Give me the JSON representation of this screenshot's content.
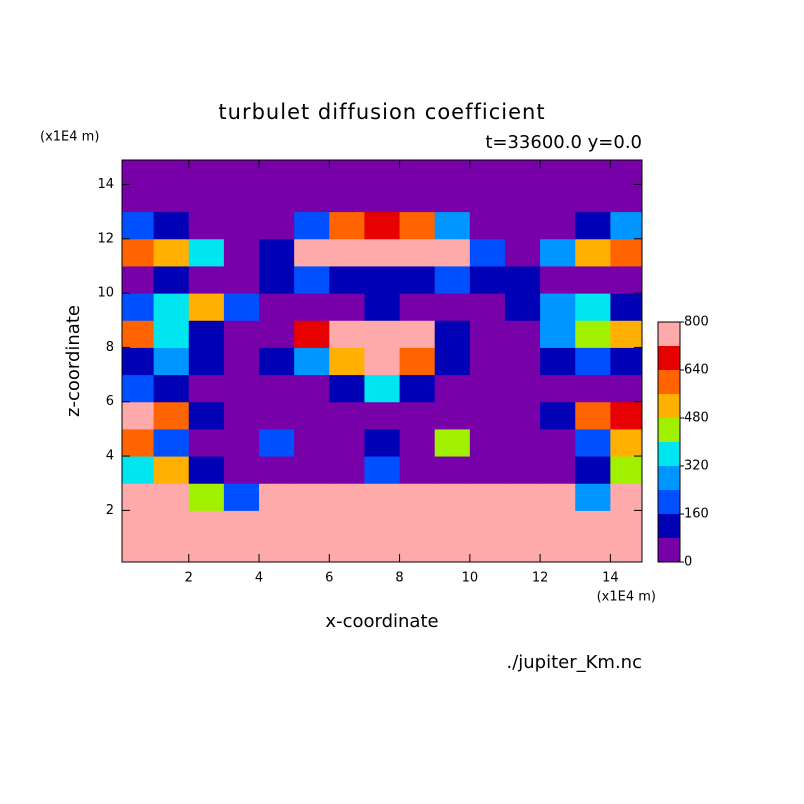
{
  "chart_data": {
    "type": "heatmap",
    "title": "turbulet diffusion coefficient",
    "subtitle": "t=33600.0 y=0.0",
    "x_label": "x-coordinate",
    "y_label": "z-coordinate",
    "x_unit": "(x1E4 m)",
    "y_unit": "(x1E4 m)",
    "source": "./jupiter_Km.nc",
    "xlim": [
      0.1,
      14.9
    ],
    "ylim": [
      0.1,
      14.9
    ],
    "xticks": [
      2,
      4,
      6,
      8,
      10,
      12,
      14
    ],
    "yticks": [
      2,
      4,
      6,
      8,
      10,
      12,
      14
    ],
    "x": [
      0.5,
      1.5,
      2.5,
      3.5,
      4.5,
      5.5,
      6.5,
      7.5,
      8.5,
      9.5,
      10.5,
      11.5,
      12.5,
      13.5,
      14.5
    ],
    "y": [
      0.5,
      1.5,
      2.5,
      3.5,
      4.5,
      5.5,
      6.5,
      7.5,
      8.5,
      9.5,
      10.5,
      11.5,
      12.5,
      13.5,
      14.5
    ],
    "z": [
      [
        800,
        800,
        800,
        800,
        800,
        800,
        800,
        800,
        800,
        800,
        800,
        800,
        800,
        800,
        800
      ],
      [
        800,
        720,
        800,
        800,
        800,
        800,
        800,
        800,
        800,
        800,
        800,
        800,
        800,
        720,
        800
      ],
      [
        800,
        800,
        400,
        200,
        720,
        800,
        800,
        800,
        800,
        800,
        800,
        800,
        800,
        240,
        800
      ],
      [
        320,
        480,
        120,
        40,
        40,
        40,
        40,
        200,
        40,
        40,
        40,
        40,
        40,
        120,
        400
      ],
      [
        560,
        160,
        40,
        40,
        160,
        40,
        40,
        120,
        40,
        400,
        40,
        40,
        40,
        200,
        520
      ],
      [
        800,
        560,
        120,
        40,
        40,
        40,
        40,
        40,
        40,
        40,
        40,
        40,
        120,
        560,
        640
      ],
      [
        200,
        120,
        40,
        40,
        40,
        40,
        120,
        360,
        120,
        40,
        40,
        40,
        40,
        40,
        40
      ],
      [
        120,
        240,
        120,
        40,
        120,
        280,
        520,
        800,
        600,
        120,
        40,
        40,
        120,
        200,
        120
      ],
      [
        600,
        320,
        120,
        40,
        40,
        680,
        800,
        800,
        800,
        120,
        40,
        40,
        280,
        440,
        480
      ],
      [
        160,
        360,
        480,
        200,
        40,
        40,
        40,
        120,
        40,
        40,
        40,
        120,
        240,
        320,
        120
      ],
      [
        40,
        120,
        40,
        40,
        120,
        200,
        120,
        120,
        120,
        160,
        120,
        120,
        40,
        40,
        40
      ],
      [
        560,
        480,
        320,
        40,
        120,
        800,
        800,
        720,
        800,
        800,
        200,
        40,
        240,
        520,
        560
      ],
      [
        200,
        120,
        40,
        40,
        40,
        200,
        560,
        640,
        560,
        240,
        40,
        40,
        40,
        120,
        240
      ],
      [
        40,
        40,
        40,
        40,
        40,
        40,
        40,
        40,
        40,
        40,
        40,
        40,
        40,
        40,
        40
      ],
      [
        40,
        40,
        40,
        40,
        40,
        40,
        40,
        40,
        40,
        40,
        40,
        40,
        40,
        40,
        40
      ]
    ],
    "levels": [
      0,
      80,
      160,
      240,
      320,
      400,
      480,
      560,
      640,
      720,
      800
    ],
    "colors": [
      "#7800a8",
      "#0000b4",
      "#0050ff",
      "#0096ff",
      "#00e6f0",
      "#a0f000",
      "#ffb000",
      "#ff6400",
      "#e60000",
      "#ffaaaa"
    ],
    "colorbar_ticks": [
      0,
      160,
      320,
      480,
      640,
      800
    ]
  }
}
